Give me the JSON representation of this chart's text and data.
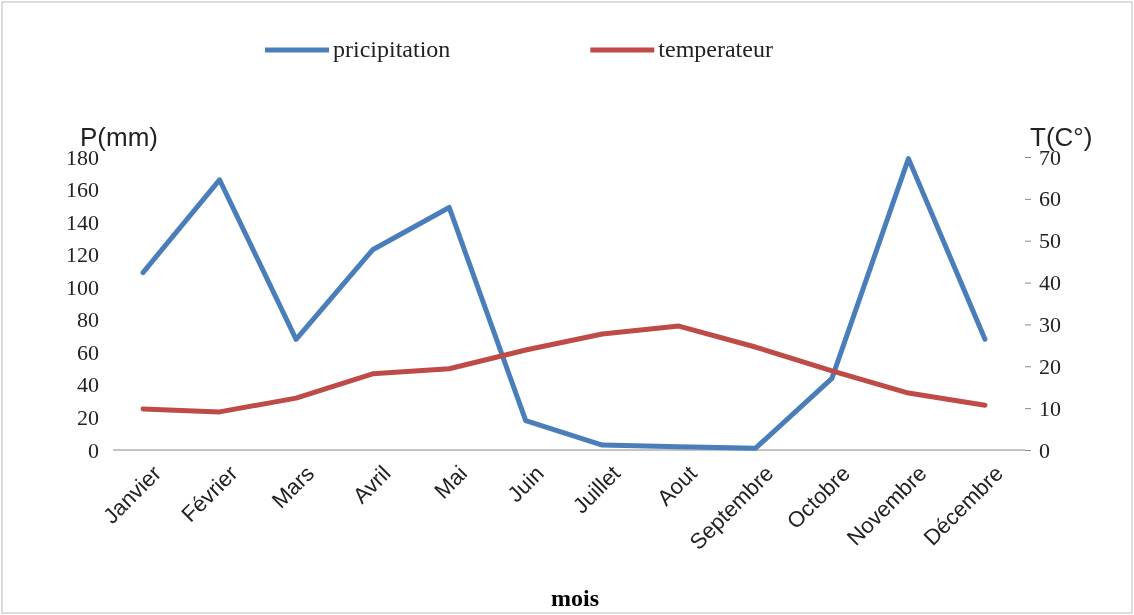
{
  "chart_data": {
    "type": "line",
    "xlabel": "mois",
    "ylabel": "P(mm)",
    "y2label": "T(C°)",
    "categories": [
      "Janvier",
      "Février",
      "Mars",
      "Avril",
      "Mai",
      "Juin",
      "Juillet",
      "Aout",
      "Septembre",
      "Octobre",
      "Novembre",
      "Décembre"
    ],
    "series": [
      {
        "name": "pricipitation",
        "color": "#4a7ebb",
        "values": [
          109,
          166,
          68,
          123,
          149,
          18,
          3,
          2,
          1,
          44,
          179,
          68
        ]
      },
      {
        "name": "temperateur",
        "color": "#be4b48",
        "axis": "y2",
        "values": [
          9.8,
          9.1,
          12.4,
          18.2,
          19.4,
          23.9,
          27.7,
          29.6,
          24.6,
          18.9,
          13.6,
          10.7
        ]
      }
    ],
    "ylim": [
      0,
      180
    ],
    "yticks": [
      0,
      20,
      40,
      60,
      80,
      100,
      120,
      140,
      160,
      180
    ],
    "y2lim": [
      0,
      70
    ],
    "y2ticks": [
      0,
      10,
      20,
      30,
      40,
      50,
      60,
      70
    ],
    "grid": false,
    "legend": "top",
    "marker": "none",
    "line_style": "solid"
  }
}
